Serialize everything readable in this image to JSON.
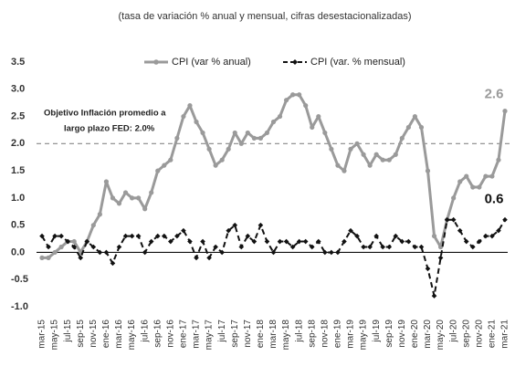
{
  "chart_data": {
    "type": "line",
    "subtitle": "(tasa de variación % anual y mensual, cifras desestacionalizadas)",
    "categories": [
      "mar-15",
      null,
      "may-15",
      null,
      "jul-15",
      null,
      "sep-15",
      null,
      "nov-15",
      null,
      "ene-16",
      null,
      "mar-16",
      null,
      "may-16",
      null,
      "jul-16",
      null,
      "sep-16",
      null,
      "nov-16",
      null,
      "ene-17",
      null,
      "mar-17",
      null,
      "may-17",
      null,
      "jul-17",
      null,
      "sep-17",
      null,
      "nov-17",
      null,
      "ene-18",
      null,
      "mar-18",
      null,
      "may-18",
      null,
      "jul-18",
      null,
      "sep-18",
      null,
      "nov-18",
      null,
      "ene-19",
      null,
      "mar-19",
      null,
      "may-19",
      null,
      "jul-19",
      null,
      "sep-19",
      null,
      "nov-19",
      null,
      "ene-20",
      null,
      "mar-20",
      null,
      "may-20",
      null,
      "jul-20",
      null,
      "sep-20",
      null,
      "nov-20",
      null,
      "ene-21",
      null,
      "mar-21"
    ],
    "series": [
      {
        "name": "CPI (var % anual)",
        "color": "#9a9a9a",
        "values": [
          -0.1,
          -0.1,
          0.0,
          0.1,
          0.2,
          0.2,
          0.0,
          0.2,
          0.5,
          0.7,
          1.3,
          1.0,
          0.9,
          1.1,
          1.0,
          1.0,
          0.8,
          1.1,
          1.5,
          1.6,
          1.7,
          2.1,
          2.5,
          2.7,
          2.4,
          2.2,
          1.9,
          1.6,
          1.7,
          1.9,
          2.2,
          2.0,
          2.2,
          2.1,
          2.1,
          2.2,
          2.4,
          2.5,
          2.8,
          2.9,
          2.9,
          2.7,
          2.3,
          2.5,
          2.2,
          1.9,
          1.6,
          1.5,
          1.9,
          2.0,
          1.8,
          1.6,
          1.8,
          1.7,
          1.7,
          1.8,
          2.1,
          2.3,
          2.5,
          2.3,
          1.5,
          0.3,
          0.1,
          0.6,
          1.0,
          1.3,
          1.4,
          1.2,
          1.2,
          1.4,
          1.4,
          1.7,
          2.6
        ]
      },
      {
        "name": "CPI (var. % mensual)",
        "color": "#111111",
        "dashed": true,
        "values": [
          0.3,
          0.1,
          0.3,
          0.3,
          0.2,
          0.1,
          -0.1,
          0.2,
          0.1,
          0.0,
          0.0,
          -0.2,
          0.1,
          0.3,
          0.3,
          0.3,
          0.0,
          0.2,
          0.3,
          0.3,
          0.2,
          0.3,
          0.4,
          0.2,
          -0.1,
          0.2,
          -0.1,
          0.1,
          0.0,
          0.4,
          0.5,
          0.1,
          0.3,
          0.2,
          0.5,
          0.2,
          0.0,
          0.2,
          0.2,
          0.1,
          0.2,
          0.2,
          0.1,
          0.2,
          0.0,
          0.0,
          0.0,
          0.2,
          0.4,
          0.3,
          0.1,
          0.1,
          0.3,
          0.1,
          0.1,
          0.3,
          0.2,
          0.2,
          0.1,
          0.1,
          -0.3,
          -0.8,
          -0.1,
          0.6,
          0.6,
          0.4,
          0.2,
          0.1,
          0.2,
          0.3,
          0.3,
          0.4,
          0.6
        ]
      }
    ],
    "target": 2,
    "annotation": [
      "Objetivo Inflación promedio a",
      "largo plazo FED: 2.0%"
    ],
    "ylim": [
      -1,
      3.5
    ],
    "yticks": [
      {
        "value": -1,
        "label": "-1.0"
      },
      -0.5,
      {
        "value": 0,
        "label": "0.0"
      },
      0.5,
      {
        "value": 1,
        "label": "1.0"
      },
      1.5,
      {
        "value": 2,
        "label": "2.0"
      },
      2.5,
      {
        "value": 3,
        "label": "3.0"
      },
      3.5
    ]
  }
}
